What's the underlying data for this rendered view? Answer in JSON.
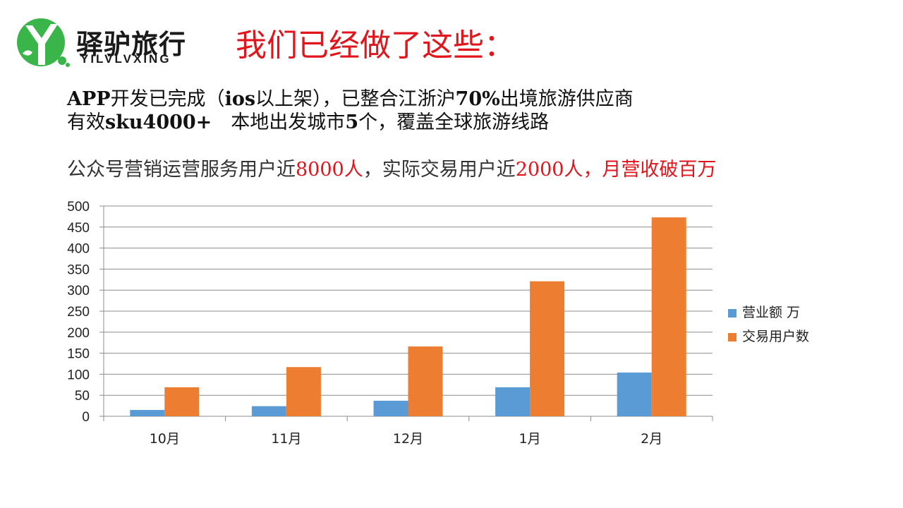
{
  "logo": {
    "brand_cn": "驿驴旅行",
    "brand_en": "YILVLVXING",
    "icon": "green-circle-Y-logo-icon",
    "color": "#39b54a"
  },
  "headline": "我们已经做了这些：",
  "line1": {
    "p1": "APP",
    "p2": "开发已完成（",
    "p3": "ios",
    "p4": "以上架），已整合江浙沪",
    "p5": "70%",
    "p6": "出境旅游供应商"
  },
  "line2": {
    "p1": "有效",
    "p2": "sku4000+",
    "p3": "　本地出发城市",
    "p4": "5",
    "p5": "个，覆盖全球旅游线路"
  },
  "line3": {
    "p1": "公众号营销运营服务用户近",
    "p2": "8000人",
    "p3": "，实际交易用户近",
    "p4": "2000人",
    "p5": "，月营收破百万"
  },
  "colors": {
    "accent_red": "#e0161c",
    "series_blue": "#5b9bd5",
    "series_orange": "#ed7d31"
  },
  "chart_data": {
    "type": "bar",
    "categories": [
      "10月",
      "11月",
      "12月",
      "1月",
      "2月"
    ],
    "series": [
      {
        "name": "营业额 万",
        "values": [
          15,
          24,
          37,
          69,
          104
        ],
        "color": "#5b9bd5"
      },
      {
        "name": "交易用户数",
        "values": [
          69,
          117,
          166,
          321,
          473
        ],
        "color": "#ed7d31"
      }
    ],
    "ylim": [
      0,
      500
    ],
    "yticks": [
      0,
      50,
      100,
      150,
      200,
      250,
      300,
      350,
      400,
      450,
      500
    ],
    "grid": true,
    "legend": "right"
  }
}
